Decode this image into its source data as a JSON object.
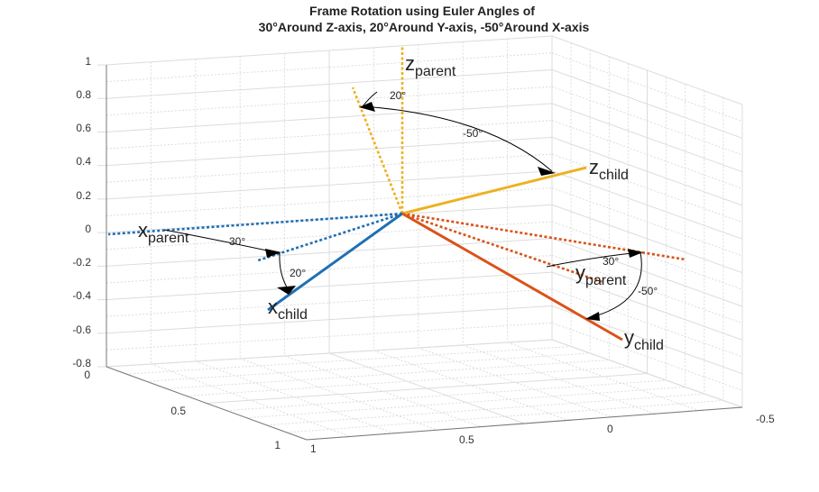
{
  "title": {
    "line1": "Frame Rotation using Euler Angles of",
    "line2": "30°Around Z-axis, 20°Around Y-axis, -50°Around X-axis"
  },
  "z_ticks": [
    "1",
    "0.8",
    "0.6",
    "0.4",
    "0.2",
    "0",
    "-0.2",
    "-0.4",
    "-0.6",
    "-0.8"
  ],
  "x_ticks": [
    "0",
    "0.5",
    "1"
  ],
  "y_ticks": [
    "1",
    "0.5",
    "0",
    "-0.5"
  ],
  "labels": {
    "z_parent": {
      "main": "z",
      "sub": "parent"
    },
    "z_child": {
      "main": "z",
      "sub": "child"
    },
    "x_parent": {
      "main": "x",
      "sub": "parent"
    },
    "x_child": {
      "main": "x",
      "sub": "child"
    },
    "y_parent": {
      "main": "y",
      "sub": "parent"
    },
    "y_child": {
      "main": "y",
      "sub": "child"
    }
  },
  "angles": {
    "z_20": "20°",
    "z_m50": "-50°",
    "x_30": "30°",
    "x_20": "20°",
    "y_30": "30°",
    "y_m50": "-50°"
  },
  "colors": {
    "x_axis": "#1f6fb5",
    "y_axis": "#d95319",
    "z_axis": "#edb120",
    "grid": "#dcdcdc",
    "box": "#777777"
  }
}
